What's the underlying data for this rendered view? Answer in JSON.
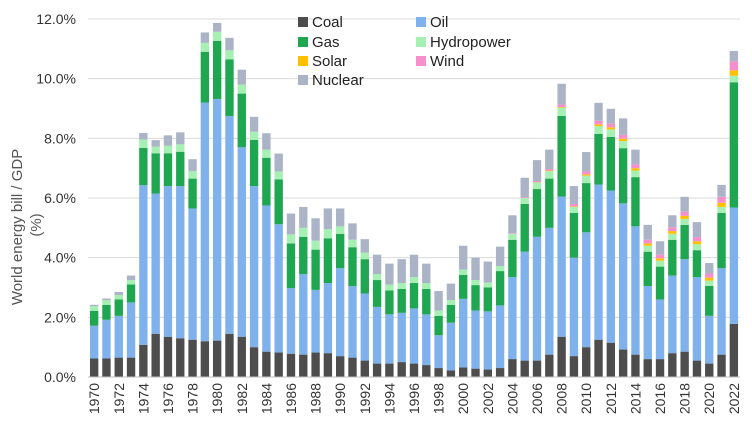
{
  "chart_data": {
    "type": "bar",
    "stacked": true,
    "title": "",
    "xlabel": "",
    "ylabel": "World energy bill / GDP (%)",
    "ylabel_lines": [
      "World energy bill / GDP",
      "(%)"
    ],
    "ylim": [
      0,
      12
    ],
    "yticks": [
      0,
      2,
      4,
      6,
      8,
      10,
      12
    ],
    "ytick_labels": [
      "0.0%",
      "2.0%",
      "4.0%",
      "6.0%",
      "8.0%",
      "10.0%",
      "12.0%"
    ],
    "grid": "horizontal",
    "legend_position": "top-center",
    "categories": [
      "1970",
      "1971",
      "1972",
      "1973",
      "1974",
      "1975",
      "1976",
      "1977",
      "1978",
      "1979",
      "1980",
      "1981",
      "1982",
      "1983",
      "1984",
      "1985",
      "1986",
      "1987",
      "1988",
      "1989",
      "1990",
      "1991",
      "1992",
      "1993",
      "1994",
      "1995",
      "1996",
      "1997",
      "1998",
      "1999",
      "2000",
      "2001",
      "2002",
      "2003",
      "2004",
      "2005",
      "2006",
      "2007",
      "2008",
      "2009",
      "2010",
      "2011",
      "2012",
      "2013",
      "2014",
      "2015",
      "2016",
      "2017",
      "2018",
      "2019",
      "2020",
      "2021",
      "2022"
    ],
    "xtick_labels": [
      "1970",
      "1972",
      "1974",
      "1976",
      "1978",
      "1980",
      "1982",
      "1984",
      "1986",
      "1988",
      "1990",
      "1992",
      "1994",
      "1996",
      "1998",
      "2000",
      "2002",
      "2004",
      "2006",
      "2008",
      "2010",
      "2012",
      "2014",
      "2016",
      "2018",
      "2020",
      "2022"
    ],
    "series": [
      {
        "name": "Coal",
        "color": "#4d4d4d",
        "values": [
          0.62,
          0.62,
          0.65,
          0.65,
          1.08,
          1.45,
          1.35,
          1.3,
          1.25,
          1.2,
          1.22,
          1.45,
          1.35,
          1.0,
          0.85,
          0.82,
          0.78,
          0.75,
          0.82,
          0.8,
          0.7,
          0.65,
          0.55,
          0.45,
          0.45,
          0.5,
          0.45,
          0.4,
          0.3,
          0.22,
          0.32,
          0.28,
          0.25,
          0.3,
          0.6,
          0.55,
          0.55,
          0.75,
          1.35,
          0.7,
          1.0,
          1.25,
          1.15,
          0.92,
          0.75,
          0.6,
          0.6,
          0.8,
          0.85,
          0.55,
          0.45,
          0.75,
          1.78
        ]
      },
      {
        "name": "Oil",
        "color": "#7fb2ec",
        "values": [
          1.1,
          1.3,
          1.4,
          1.85,
          5.35,
          4.7,
          5.05,
          5.1,
          4.4,
          8.0,
          8.1,
          7.3,
          6.35,
          5.4,
          4.9,
          4.3,
          2.2,
          2.7,
          2.1,
          2.35,
          2.95,
          2.4,
          2.25,
          1.9,
          1.65,
          1.65,
          1.85,
          1.7,
          1.1,
          1.6,
          2.3,
          1.95,
          1.95,
          2.1,
          2.75,
          3.65,
          4.15,
          4.25,
          4.7,
          3.3,
          3.85,
          5.2,
          5.1,
          4.9,
          4.3,
          2.45,
          2.0,
          2.6,
          3.1,
          2.8,
          1.6,
          2.9,
          3.9
        ]
      },
      {
        "name": "Gas",
        "color": "#1ea650",
        "values": [
          0.5,
          0.5,
          0.55,
          0.6,
          1.25,
          1.35,
          1.1,
          1.15,
          1.0,
          1.7,
          1.95,
          1.9,
          1.8,
          1.55,
          1.6,
          1.5,
          1.5,
          1.25,
          1.35,
          1.5,
          1.15,
          1.3,
          1.15,
          0.9,
          0.8,
          0.8,
          0.85,
          0.85,
          0.65,
          0.6,
          0.8,
          0.85,
          0.8,
          1.15,
          1.25,
          1.6,
          1.6,
          1.65,
          2.7,
          1.5,
          1.65,
          1.7,
          1.8,
          1.85,
          1.65,
          1.15,
          1.1,
          1.2,
          1.15,
          0.9,
          1.0,
          1.85,
          4.2
        ]
      },
      {
        "name": "Hydropower",
        "color": "#a6f0b3",
        "values": [
          0.15,
          0.15,
          0.15,
          0.15,
          0.28,
          0.22,
          0.25,
          0.25,
          0.25,
          0.3,
          0.3,
          0.3,
          0.3,
          0.27,
          0.27,
          0.27,
          0.3,
          0.3,
          0.3,
          0.3,
          0.25,
          0.25,
          0.22,
          0.2,
          0.2,
          0.2,
          0.2,
          0.2,
          0.18,
          0.16,
          0.18,
          0.17,
          0.17,
          0.17,
          0.2,
          0.2,
          0.22,
          0.25,
          0.28,
          0.2,
          0.25,
          0.26,
          0.25,
          0.24,
          0.22,
          0.2,
          0.2,
          0.2,
          0.2,
          0.2,
          0.18,
          0.2,
          0.22
        ]
      },
      {
        "name": "Solar",
        "color": "#ffc000",
        "values": [
          0,
          0,
          0,
          0,
          0,
          0,
          0,
          0,
          0,
          0,
          0,
          0,
          0,
          0,
          0,
          0,
          0,
          0,
          0,
          0,
          0,
          0,
          0,
          0,
          0,
          0,
          0,
          0,
          0,
          0,
          0,
          0,
          0,
          0,
          0,
          0,
          0.01,
          0.02,
          0.02,
          0.02,
          0.04,
          0.06,
          0.07,
          0.08,
          0.08,
          0.08,
          0.08,
          0.09,
          0.1,
          0.1,
          0.1,
          0.14,
          0.18
        ]
      },
      {
        "name": "Wind",
        "color": "#f78fcd",
        "values": [
          0,
          0,
          0,
          0,
          0,
          0,
          0,
          0,
          0,
          0,
          0,
          0,
          0,
          0,
          0,
          0,
          0,
          0,
          0,
          0,
          0,
          0,
          0,
          0,
          0,
          0,
          0,
          0,
          0,
          0,
          0,
          0,
          0,
          0,
          0.02,
          0.03,
          0.04,
          0.05,
          0.08,
          0.08,
          0.1,
          0.12,
          0.12,
          0.13,
          0.12,
          0.12,
          0.12,
          0.13,
          0.14,
          0.14,
          0.14,
          0.2,
          0.3
        ]
      },
      {
        "name": "Nuclear",
        "color": "#aab4c6",
        "values": [
          0.05,
          0.06,
          0.1,
          0.15,
          0.22,
          0.22,
          0.35,
          0.4,
          0.4,
          0.35,
          0.3,
          0.42,
          0.5,
          0.5,
          0.55,
          0.6,
          0.7,
          0.7,
          0.75,
          0.7,
          0.6,
          0.55,
          0.45,
          0.65,
          0.7,
          0.8,
          0.75,
          0.65,
          0.65,
          0.55,
          0.8,
          0.75,
          0.7,
          0.65,
          0.6,
          0.65,
          0.7,
          0.65,
          0.7,
          0.6,
          0.65,
          0.6,
          0.5,
          0.55,
          0.5,
          0.5,
          0.45,
          0.4,
          0.5,
          0.5,
          0.35,
          0.4,
          0.35
        ]
      }
    ]
  }
}
